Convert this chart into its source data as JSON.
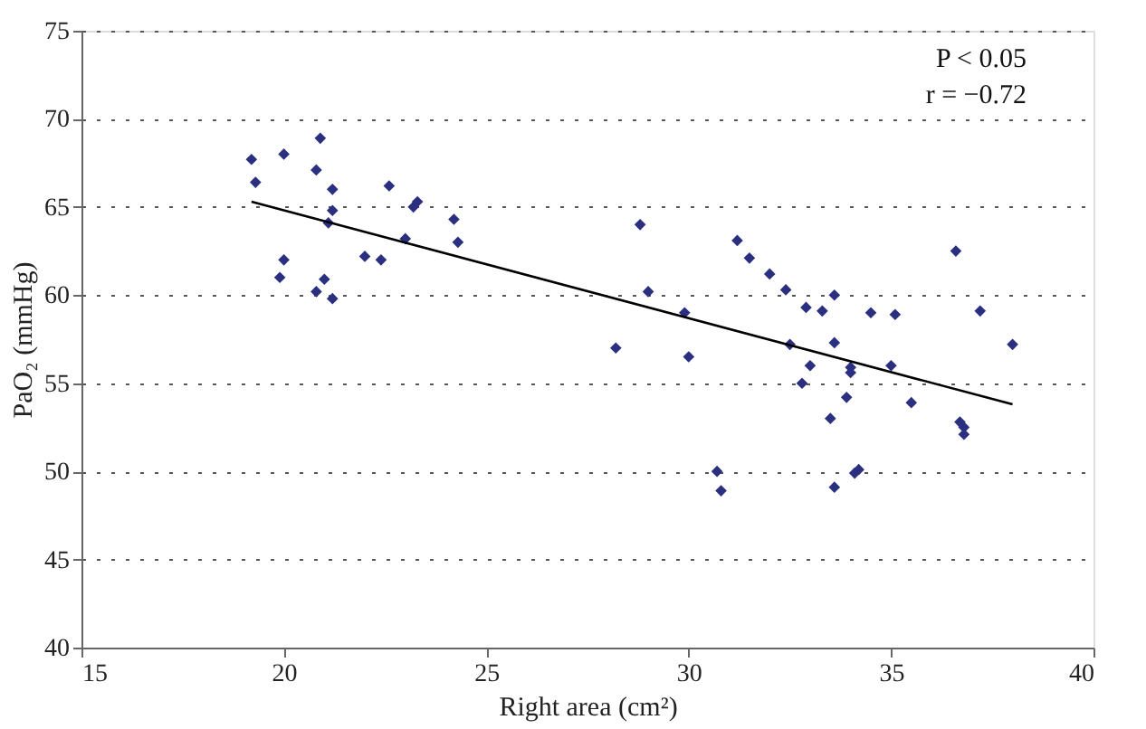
{
  "chart_data": {
    "type": "scatter",
    "xlabel": "Right area (cm²)",
    "ylabel": "PaO₂ (mmHg)",
    "xlim": [
      15,
      40
    ],
    "xticks": [
      15,
      20,
      25,
      30,
      35,
      40
    ],
    "ylim": [
      40,
      75
    ],
    "yticks": [
      40,
      45,
      50,
      55,
      60,
      65,
      70,
      75
    ],
    "grid": "y",
    "annotations": [
      "P < 0.05",
      "r = −0.72"
    ],
    "series": [
      {
        "marker": "diamond",
        "color": "#2b2f7f",
        "x": [
          19.2,
          19.3,
          20.0,
          19.9,
          20.0,
          20.8,
          20.8,
          20.9,
          21.0,
          21.1,
          21.2,
          21.2,
          21.2,
          22.0,
          22.4,
          22.6,
          23.0,
          23.2,
          23.3,
          24.2,
          24.3,
          28.2,
          28.8,
          29.0,
          29.9,
          30.0,
          30.7,
          30.8,
          31.2,
          31.5,
          32.0,
          32.4,
          32.5,
          32.8,
          32.9,
          33.0,
          33.3,
          33.5,
          33.6,
          33.6,
          33.6,
          33.9,
          34.0,
          34.0,
          34.1,
          34.2,
          34.5,
          35.0,
          35.1,
          35.5,
          36.6,
          36.7,
          36.8,
          36.8,
          37.2,
          38.0
        ],
        "values": [
          67.7,
          66.4,
          68.0,
          61.0,
          62.0,
          60.2,
          67.1,
          68.9,
          60.9,
          64.1,
          59.8,
          66.0,
          64.8,
          62.2,
          62.0,
          66.2,
          63.2,
          65.0,
          65.3,
          64.3,
          63.0,
          57.0,
          64.0,
          60.2,
          59.0,
          56.5,
          50.0,
          48.9,
          63.1,
          62.1,
          61.2,
          60.3,
          57.2,
          55.0,
          59.3,
          56.0,
          59.1,
          53.0,
          60.0,
          57.3,
          49.1,
          54.2,
          55.6,
          55.9,
          49.9,
          50.1,
          59.0,
          56.0,
          58.9,
          53.9,
          62.5,
          52.8,
          52.5,
          52.1,
          59.1,
          57.2
        ]
      },
      {
        "type": "line",
        "marker": "none",
        "color": "#000000",
        "x": [
          19.2,
          38.0
        ],
        "values": [
          65.3,
          53.8
        ]
      }
    ]
  }
}
